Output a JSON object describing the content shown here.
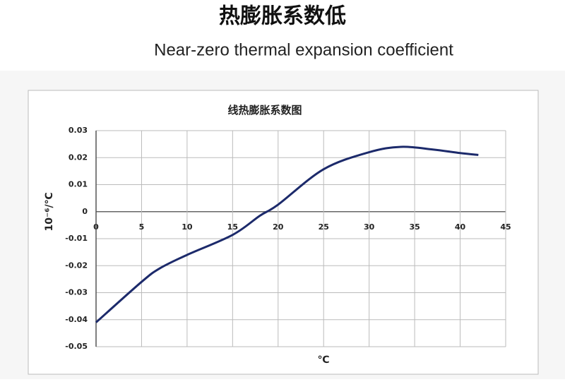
{
  "header": {
    "title": "热膨胀系数低",
    "subtitle": "Near-zero thermal expansion coefficient"
  },
  "chart_data": {
    "type": "line",
    "title": "线热膨胀系数图",
    "x_label": "℃",
    "y_label": "10⁻⁶/℃",
    "x": [
      0,
      5,
      7,
      10,
      15,
      18,
      20,
      25,
      30,
      33.5,
      37,
      40,
      42
    ],
    "series": [
      {
        "color": "#1c2a6b",
        "values": [
          -0.041,
          -0.026,
          -0.021,
          -0.016,
          -0.0086,
          -0.0015,
          0.0026,
          0.0157,
          0.022,
          0.024,
          0.023,
          0.0217,
          0.021
        ]
      }
    ],
    "xlim": [
      0,
      45
    ],
    "xticks": [
      0,
      5,
      10,
      15,
      20,
      25,
      30,
      35,
      40,
      45
    ],
    "ylim": [
      -0.05,
      0.03
    ],
    "yticks": [
      -0.05,
      -0.04,
      -0.03,
      -0.02,
      -0.01,
      0,
      0.01,
      0.02,
      0.03
    ],
    "grid": true
  }
}
